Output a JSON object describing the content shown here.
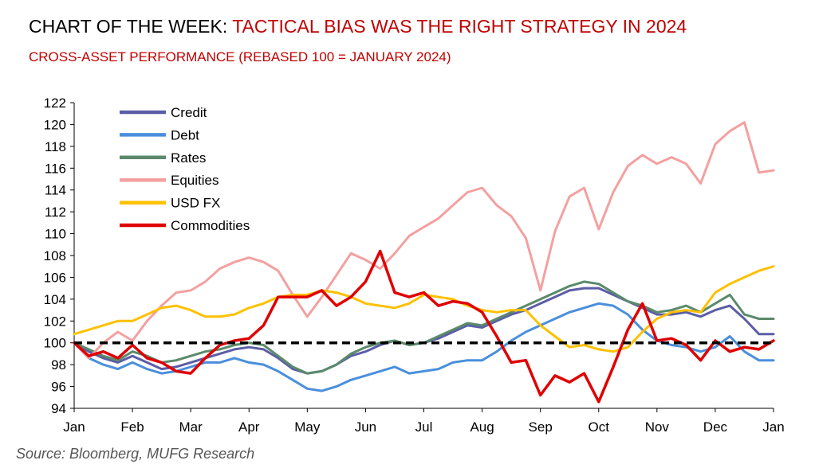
{
  "header": {
    "title_prefix": "CHART OF THE WEEK: ",
    "title_highlight": "TACTICAL BIAS WAS THE RIGHT STRATEGY IN 2024",
    "subtitle": "CROSS-ASSET PERFORMANCE (REBASED 100 = JANUARY 2024)"
  },
  "footer": {
    "source": "Source: Bloomberg, MUFG Research"
  },
  "chart_data": {
    "type": "line",
    "title": "CROSS-ASSET PERFORMANCE (REBASED 100 = JANUARY 2024)",
    "xlabel": "",
    "ylabel": "",
    "ylim": [
      94,
      122
    ],
    "yticks": [
      94,
      96,
      98,
      100,
      102,
      104,
      106,
      108,
      110,
      112,
      114,
      116,
      118,
      120,
      122
    ],
    "xticks": [
      "Jan",
      "Feb",
      "Mar",
      "Apr",
      "May",
      "Jun",
      "Jul",
      "Aug",
      "Sep",
      "Oct",
      "Nov",
      "Dec",
      "Jan"
    ],
    "xlim": [
      0,
      12
    ],
    "grid": false,
    "legend_position": "top-left",
    "reference_line": {
      "value": 100,
      "style": "dashed",
      "color": "#000000"
    },
    "series": [
      {
        "name": "Credit",
        "color": "#5b5ea6",
        "x": [
          0,
          0.25,
          0.5,
          0.75,
          1,
          1.25,
          1.5,
          1.75,
          2,
          2.25,
          2.5,
          2.75,
          3,
          3.25,
          3.5,
          3.75,
          4,
          4.25,
          4.5,
          4.75,
          5,
          5.25,
          5.5,
          5.75,
          6,
          6.25,
          6.5,
          6.75,
          7,
          7.25,
          7.5,
          7.75,
          8,
          8.25,
          8.5,
          8.75,
          9,
          9.25,
          9.5,
          9.75,
          10,
          10.25,
          10.5,
          10.75,
          11,
          11.25,
          11.5,
          11.75,
          12
        ],
        "y": [
          100,
          99.2,
          98.6,
          98.2,
          98.8,
          98.2,
          97.6,
          97.8,
          98.2,
          98.6,
          99,
          99.4,
          99.6,
          99.4,
          98.6,
          97.6,
          97.2,
          97.4,
          98,
          98.8,
          99.2,
          99.8,
          100.2,
          99.8,
          100,
          100.4,
          101,
          101.6,
          101.4,
          102,
          102.6,
          103,
          103.6,
          104.2,
          104.8,
          105,
          105,
          104.4,
          103.8,
          103.2,
          102.6,
          102.6,
          102.8,
          102.4,
          103,
          103.4,
          102.2,
          100.8,
          100.8
        ]
      },
      {
        "name": "Debt",
        "color": "#4a8fdd",
        "x": [
          0,
          0.25,
          0.5,
          0.75,
          1,
          1.25,
          1.5,
          1.75,
          2,
          2.25,
          2.5,
          2.75,
          3,
          3.25,
          3.5,
          3.75,
          4,
          4.25,
          4.5,
          4.75,
          5,
          5.25,
          5.5,
          5.75,
          6,
          6.25,
          6.5,
          6.75,
          7,
          7.25,
          7.5,
          7.75,
          8,
          8.25,
          8.5,
          8.75,
          9,
          9.25,
          9.5,
          9.75,
          10,
          10.25,
          10.5,
          10.75,
          11,
          11.25,
          11.5,
          11.75,
          12
        ],
        "y": [
          100,
          98.6,
          98,
          97.6,
          98.2,
          97.6,
          97.2,
          97.4,
          97.8,
          98.2,
          98.2,
          98.6,
          98.2,
          98,
          97.4,
          96.6,
          95.8,
          95.6,
          96,
          96.6,
          97,
          97.4,
          97.8,
          97.2,
          97.4,
          97.6,
          98.2,
          98.4,
          98.4,
          99.2,
          100.2,
          101,
          101.6,
          102.2,
          102.8,
          103.2,
          103.6,
          103.4,
          102.6,
          101.2,
          100.2,
          99.8,
          99.6,
          99.2,
          99.6,
          100.6,
          99.2,
          98.4,
          98.4
        ]
      },
      {
        "name": "Rates",
        "color": "#5b8a6b",
        "x": [
          0,
          0.25,
          0.5,
          0.75,
          1,
          1.25,
          1.5,
          1.75,
          2,
          2.25,
          2.5,
          2.75,
          3,
          3.25,
          3.5,
          3.75,
          4,
          4.25,
          4.5,
          4.75,
          5,
          5.25,
          5.5,
          5.75,
          6,
          6.25,
          6.5,
          6.75,
          7,
          7.25,
          7.5,
          7.75,
          8,
          8.25,
          8.5,
          8.75,
          9,
          9.25,
          9.5,
          9.75,
          10,
          10.25,
          10.5,
          10.75,
          11,
          11.25,
          11.5,
          11.75,
          12
        ],
        "y": [
          100,
          99.4,
          98.8,
          98.4,
          99.2,
          98.8,
          98.2,
          98.4,
          98.8,
          99.2,
          99.4,
          99.8,
          100,
          99.8,
          98.8,
          97.8,
          97.2,
          97.4,
          98,
          99,
          99.6,
          100,
          100.2,
          99.8,
          100,
          100.6,
          101.2,
          101.8,
          101.6,
          102.2,
          102.8,
          103.4,
          104,
          104.6,
          105.2,
          105.6,
          105.4,
          104.6,
          103.8,
          103.4,
          102.8,
          103,
          103.4,
          102.8,
          103.6,
          104.4,
          102.6,
          102.2,
          102.2
        ]
      },
      {
        "name": "Equities",
        "color": "#f4a0a0",
        "x": [
          0,
          0.25,
          0.5,
          0.75,
          1,
          1.25,
          1.5,
          1.75,
          2,
          2.25,
          2.5,
          2.75,
          3,
          3.25,
          3.5,
          3.75,
          4,
          4.25,
          4.5,
          4.75,
          5,
          5.25,
          5.5,
          5.75,
          6,
          6.25,
          6.5,
          6.75,
          7,
          7.25,
          7.5,
          7.75,
          8,
          8.25,
          8.5,
          8.75,
          9,
          9.25,
          9.5,
          9.75,
          10,
          10.25,
          10.5,
          10.75,
          11,
          11.25,
          11.5,
          11.75,
          12
        ],
        "y": [
          100,
          98.6,
          100,
          101,
          100.2,
          102,
          103.4,
          104.6,
          104.8,
          105.6,
          106.8,
          107.4,
          107.8,
          107.4,
          106.6,
          104.4,
          102.4,
          104.2,
          106.2,
          108.2,
          107.6,
          106.8,
          108.2,
          109.8,
          110.6,
          111.4,
          112.6,
          113.8,
          114.2,
          112.6,
          111.6,
          109.6,
          104.8,
          110.2,
          113.4,
          114.2,
          110.4,
          113.8,
          116.2,
          117.2,
          116.4,
          117,
          116.4,
          114.6,
          118.2,
          119.4,
          120.2,
          115.6,
          115.8
        ]
      },
      {
        "name": "USD FX",
        "color": "#ffc000",
        "x": [
          0,
          0.25,
          0.5,
          0.75,
          1,
          1.25,
          1.5,
          1.75,
          2,
          2.25,
          2.5,
          2.75,
          3,
          3.25,
          3.5,
          3.75,
          4,
          4.25,
          4.5,
          4.75,
          5,
          5.25,
          5.5,
          5.75,
          6,
          6.25,
          6.5,
          6.75,
          7,
          7.25,
          7.5,
          7.75,
          8,
          8.25,
          8.5,
          8.75,
          9,
          9.25,
          9.5,
          9.75,
          10,
          10.25,
          10.5,
          10.75,
          11,
          11.25,
          11.5,
          11.75,
          12
        ],
        "y": [
          100.8,
          101.2,
          101.6,
          102,
          102,
          102.6,
          103.2,
          103.4,
          103,
          102.4,
          102.4,
          102.6,
          103.2,
          103.6,
          104.2,
          104.4,
          104.4,
          104.8,
          104.6,
          104.2,
          103.6,
          103.4,
          103.2,
          103.6,
          104.4,
          104.2,
          104,
          103.4,
          103,
          102.8,
          103,
          103,
          101.6,
          100.6,
          99.6,
          99.8,
          99.4,
          99.2,
          99.6,
          101,
          102.2,
          102.8,
          103,
          102.8,
          104.6,
          105.4,
          106,
          106.6,
          107
        ]
      },
      {
        "name": "Commodities",
        "color": "#e00000",
        "x": [
          0,
          0.25,
          0.5,
          0.75,
          1,
          1.25,
          1.5,
          1.75,
          2,
          2.25,
          2.5,
          2.75,
          3,
          3.25,
          3.5,
          3.75,
          4,
          4.25,
          4.5,
          4.75,
          5,
          5.25,
          5.5,
          5.75,
          6,
          6.25,
          6.5,
          6.75,
          7,
          7.25,
          7.5,
          7.75,
          8,
          8.25,
          8.5,
          8.75,
          9,
          9.25,
          9.5,
          9.75,
          10,
          10.25,
          10.5,
          10.75,
          11,
          11.25,
          11.5,
          11.75,
          12
        ],
        "y": [
          100,
          98.8,
          99.2,
          98.6,
          99.8,
          98.6,
          98.2,
          97.4,
          97.2,
          98.6,
          99.8,
          100.2,
          100.4,
          101.6,
          104.2,
          104.2,
          104.2,
          104.8,
          103.4,
          104.2,
          105.6,
          108.4,
          104.6,
          104.2,
          104.6,
          103.4,
          103.8,
          103.6,
          102.8,
          100.6,
          98.2,
          98.4,
          95.2,
          97,
          96.4,
          97.2,
          94.6,
          97.8,
          101.2,
          103.6,
          100.2,
          100.4,
          99.8,
          98.4,
          100.2,
          99.2,
          99.6,
          99.4,
          100.2
        ]
      }
    ]
  }
}
